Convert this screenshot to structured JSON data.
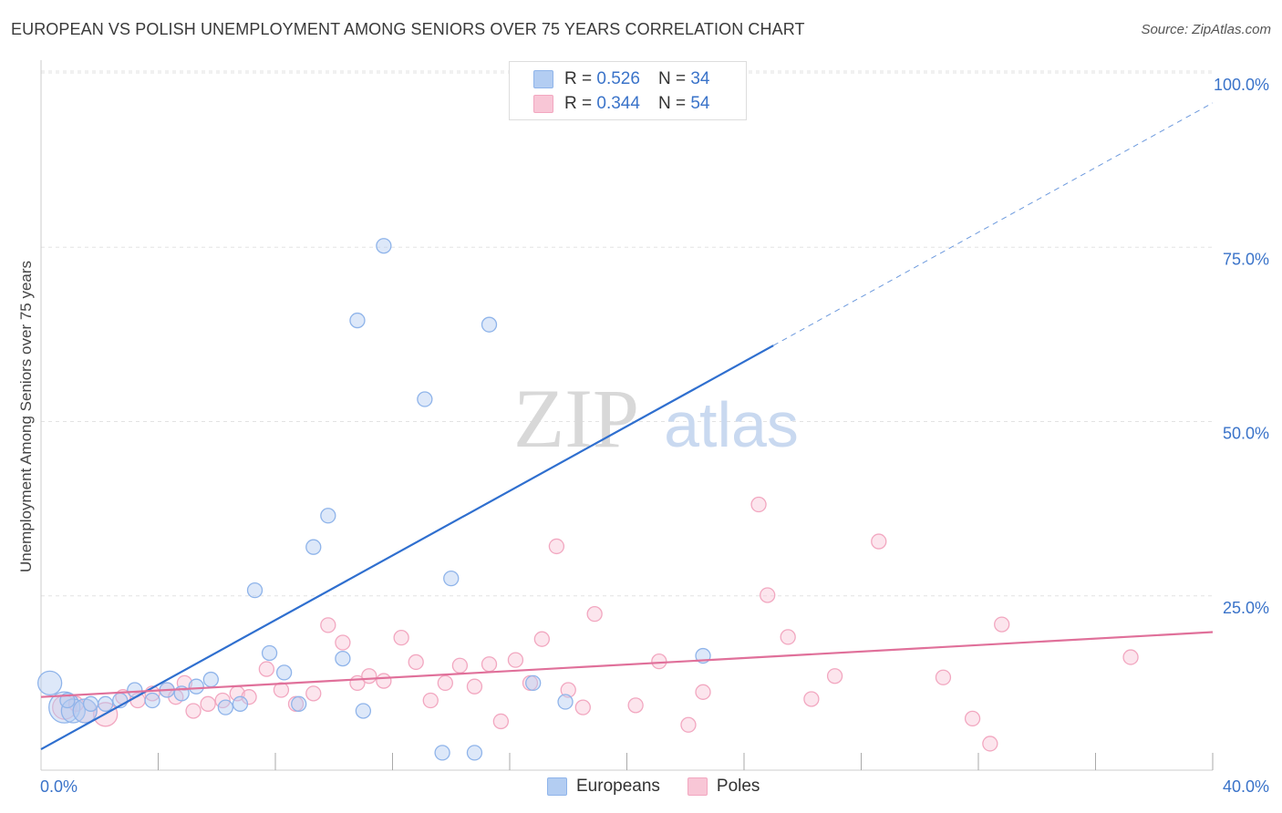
{
  "header": {
    "title": "EUROPEAN VS POLISH UNEMPLOYMENT AMONG SENIORS OVER 75 YEARS CORRELATION CHART",
    "source": "Source: ZipAtlas.com"
  },
  "watermark": {
    "part1": "ZIP",
    "part2": "atlas"
  },
  "legend": {
    "rows": [
      {
        "r_label": "R =",
        "r_value": "0.526",
        "n_label": "N =",
        "n_value": "34",
        "color": "#8fb4ea"
      },
      {
        "r_label": "R =",
        "r_value": "0.344",
        "n_label": "N =",
        "n_value": "54",
        "color": "#f2a7c0"
      }
    ]
  },
  "bottom_legend": {
    "europeans": "Europeans",
    "poles": "Poles"
  },
  "colors": {
    "europeans_fill": "#b3cdf2",
    "europeans_stroke": "#8fb4ea",
    "europeans_line": "#2f6fcf",
    "poles_fill": "#f8c6d6",
    "poles_stroke": "#f2a7c0",
    "poles_line": "#e0709a",
    "tick_label": "#3a73c9"
  },
  "chart_data": {
    "type": "scatter",
    "title": "EUROPEAN VS POLISH UNEMPLOYMENT AMONG SENIORS OVER 75 YEARS CORRELATION CHART",
    "xlabel": "",
    "ylabel": "Unemployment Among Seniors over 75 years",
    "xlim": [
      0,
      40
    ],
    "ylim": [
      0,
      105
    ],
    "x_tick_labels": [
      "0.0%",
      "40.0%"
    ],
    "y_ticks": [
      25,
      50,
      75,
      100
    ],
    "y_tick_labels": [
      "25.0%",
      "50.0%",
      "75.0%",
      "100.0%"
    ],
    "grid": true,
    "legend_position": "top-center",
    "series": [
      {
        "name": "Europeans",
        "points": [
          {
            "x": 0.3,
            "y": 12.5,
            "s": 2
          },
          {
            "x": 0.8,
            "y": 9.0,
            "s": 3
          },
          {
            "x": 1.1,
            "y": 8.5,
            "s": 2
          },
          {
            "x": 1.5,
            "y": 8.5,
            "s": 2
          },
          {
            "x": 1.7,
            "y": 9.5,
            "s": 1
          },
          {
            "x": 2.2,
            "y": 9.5,
            "s": 1
          },
          {
            "x": 2.7,
            "y": 10.0,
            "s": 1
          },
          {
            "x": 3.2,
            "y": 11.5,
            "s": 1
          },
          {
            "x": 3.8,
            "y": 10.0,
            "s": 1
          },
          {
            "x": 4.3,
            "y": 11.5,
            "s": 1
          },
          {
            "x": 4.8,
            "y": 11.0,
            "s": 1
          },
          {
            "x": 5.3,
            "y": 12.0,
            "s": 1
          },
          {
            "x": 5.8,
            "y": 13.0,
            "s": 1
          },
          {
            "x": 6.3,
            "y": 9.0,
            "s": 1
          },
          {
            "x": 6.8,
            "y": 9.5,
            "s": 1
          },
          {
            "x": 7.3,
            "y": 25.8,
            "s": 1
          },
          {
            "x": 7.8,
            "y": 16.8,
            "s": 1
          },
          {
            "x": 8.3,
            "y": 14.0,
            "s": 1
          },
          {
            "x": 8.8,
            "y": 9.5,
            "s": 1
          },
          {
            "x": 9.3,
            "y": 32.0,
            "s": 1
          },
          {
            "x": 9.8,
            "y": 36.5,
            "s": 1
          },
          {
            "x": 10.3,
            "y": 16.0,
            "s": 1
          },
          {
            "x": 10.8,
            "y": 64.5,
            "s": 1
          },
          {
            "x": 11.0,
            "y": 8.5,
            "s": 1
          },
          {
            "x": 11.7,
            "y": 75.2,
            "s": 1
          },
          {
            "x": 13.1,
            "y": 53.2,
            "s": 1
          },
          {
            "x": 13.7,
            "y": 2.5,
            "s": 1
          },
          {
            "x": 14.0,
            "y": 27.5,
            "s": 1
          },
          {
            "x": 14.8,
            "y": 2.5,
            "s": 1
          },
          {
            "x": 15.3,
            "y": 63.9,
            "s": 1
          },
          {
            "x": 16.8,
            "y": 12.5,
            "s": 1
          },
          {
            "x": 17.9,
            "y": 9.8,
            "s": 1
          },
          {
            "x": 22.6,
            "y": 16.4,
            "s": 1
          },
          {
            "x": 0.9,
            "y": 10.0,
            "s": 1
          }
        ],
        "trend": {
          "x1": 0,
          "y1": 3.0,
          "x2": 25.0,
          "y2": 60.9,
          "x_dash_end": 40,
          "y_dash_end": 95.7
        }
      },
      {
        "name": "Poles",
        "points": [
          {
            "x": 0.8,
            "y": 9.0,
            "s": 2
          },
          {
            "x": 1.5,
            "y": 8.5,
            "s": 2
          },
          {
            "x": 2.2,
            "y": 8.0,
            "s": 2
          },
          {
            "x": 2.8,
            "y": 10.5,
            "s": 1
          },
          {
            "x": 3.3,
            "y": 10.0,
            "s": 1
          },
          {
            "x": 3.8,
            "y": 11.0,
            "s": 1
          },
          {
            "x": 4.3,
            "y": 11.5,
            "s": 1
          },
          {
            "x": 4.6,
            "y": 10.5,
            "s": 1
          },
          {
            "x": 4.9,
            "y": 12.5,
            "s": 1
          },
          {
            "x": 5.2,
            "y": 8.5,
            "s": 1
          },
          {
            "x": 5.7,
            "y": 9.5,
            "s": 1
          },
          {
            "x": 6.2,
            "y": 10.0,
            "s": 1
          },
          {
            "x": 6.7,
            "y": 11.0,
            "s": 1
          },
          {
            "x": 7.1,
            "y": 10.5,
            "s": 1
          },
          {
            "x": 7.7,
            "y": 14.5,
            "s": 1
          },
          {
            "x": 8.2,
            "y": 11.5,
            "s": 1
          },
          {
            "x": 8.7,
            "y": 9.5,
            "s": 1
          },
          {
            "x": 9.3,
            "y": 11.0,
            "s": 1
          },
          {
            "x": 9.8,
            "y": 20.8,
            "s": 1
          },
          {
            "x": 10.3,
            "y": 18.3,
            "s": 1
          },
          {
            "x": 10.8,
            "y": 12.5,
            "s": 1
          },
          {
            "x": 11.2,
            "y": 13.5,
            "s": 1
          },
          {
            "x": 11.7,
            "y": 12.8,
            "s": 1
          },
          {
            "x": 12.3,
            "y": 19.0,
            "s": 1
          },
          {
            "x": 12.8,
            "y": 15.5,
            "s": 1
          },
          {
            "x": 13.3,
            "y": 10.0,
            "s": 1
          },
          {
            "x": 13.8,
            "y": 12.5,
            "s": 1
          },
          {
            "x": 14.3,
            "y": 15.0,
            "s": 1
          },
          {
            "x": 14.8,
            "y": 12.0,
            "s": 1
          },
          {
            "x": 15.3,
            "y": 15.2,
            "s": 1
          },
          {
            "x": 15.7,
            "y": 7.0,
            "s": 1
          },
          {
            "x": 16.2,
            "y": 15.8,
            "s": 1
          },
          {
            "x": 16.7,
            "y": 12.5,
            "s": 1
          },
          {
            "x": 17.1,
            "y": 18.8,
            "s": 1
          },
          {
            "x": 17.6,
            "y": 32.1,
            "s": 1
          },
          {
            "x": 18.0,
            "y": 11.5,
            "s": 1
          },
          {
            "x": 18.5,
            "y": 9.0,
            "s": 1
          },
          {
            "x": 18.9,
            "y": 22.4,
            "s": 1
          },
          {
            "x": 20.3,
            "y": 9.3,
            "s": 1
          },
          {
            "x": 21.1,
            "y": 15.6,
            "s": 1
          },
          {
            "x": 22.1,
            "y": 6.5,
            "s": 1
          },
          {
            "x": 22.6,
            "y": 11.2,
            "s": 1
          },
          {
            "x": 24.5,
            "y": 38.1,
            "s": 1
          },
          {
            "x": 24.8,
            "y": 25.1,
            "s": 1
          },
          {
            "x": 25.5,
            "y": 19.1,
            "s": 1
          },
          {
            "x": 26.3,
            "y": 10.2,
            "s": 1
          },
          {
            "x": 27.1,
            "y": 13.5,
            "s": 1
          },
          {
            "x": 28.6,
            "y": 32.8,
            "s": 1
          },
          {
            "x": 30.8,
            "y": 13.3,
            "s": 1
          },
          {
            "x": 31.8,
            "y": 7.4,
            "s": 1
          },
          {
            "x": 32.4,
            "y": 3.8,
            "s": 1
          },
          {
            "x": 32.8,
            "y": 20.9,
            "s": 1
          },
          {
            "x": 37.2,
            "y": 16.2,
            "s": 1
          },
          {
            "x": 1.2,
            "y": 9.5,
            "s": 1
          }
        ],
        "trend": {
          "x1": 0,
          "y1": 10.5,
          "x2": 40,
          "y2": 19.8
        }
      }
    ]
  }
}
